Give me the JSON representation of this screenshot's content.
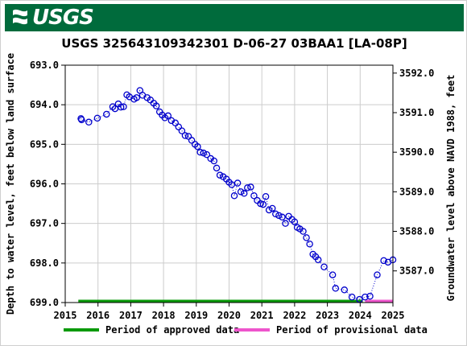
{
  "logo": {
    "text": "USGS"
  },
  "chart_data": {
    "type": "scatter",
    "title": "USGS 325643109342301 D-06-27 03BAA1 [LA-08P]",
    "ylabel_left": "Depth to water level, feet below land surface",
    "ylabel_right": "Groundwater level above NAVD 1988, feet",
    "xlim": [
      2015.0,
      2025.0
    ],
    "ylim_left": [
      693.0,
      699.0
    ],
    "ylim_right": [
      3586.2,
      3592.2
    ],
    "xticks": [
      "2015",
      "2016",
      "2017",
      "2018",
      "2019",
      "2020",
      "2021",
      "2022",
      "2023",
      "2024",
      "2025"
    ],
    "yticks_left": [
      "693.0",
      "694.0",
      "695.0",
      "696.0",
      "697.0",
      "698.0",
      "699.0"
    ],
    "yticks_right": [
      "3592.0",
      "3591.0",
      "3590.0",
      "3589.0",
      "3588.0",
      "3587.0"
    ],
    "grid": true,
    "line_style": "dotted",
    "colors": {
      "points": "#0000cc",
      "approved": "#0a9a0a",
      "provisional": "#ee55cc",
      "grid": "#cccccc"
    },
    "series": [
      {
        "x": [
          2015.48,
          2015.5,
          2015.72,
          2015.98,
          2016.26,
          2016.45,
          2016.52,
          2016.62,
          2016.7,
          2016.78,
          2016.88,
          2016.96,
          2017.1,
          2017.18,
          2017.28,
          2017.36,
          2017.5,
          2017.6,
          2017.7,
          2017.78,
          2017.88,
          2017.96,
          2018.04,
          2018.14,
          2018.24,
          2018.36,
          2018.46,
          2018.56,
          2018.66,
          2018.76,
          2018.86,
          2018.96,
          2019.04,
          2019.12,
          2019.22,
          2019.32,
          2019.44,
          2019.54,
          2019.62,
          2019.72,
          2019.82,
          2019.92,
          2020.0,
          2020.08,
          2020.16,
          2020.26,
          2020.36,
          2020.46,
          2020.56,
          2020.66,
          2020.76,
          2020.86,
          2020.96,
          2021.04,
          2021.12,
          2021.22,
          2021.32,
          2021.42,
          2021.52,
          2021.62,
          2021.72,
          2021.82,
          2021.92,
          2022.0,
          2022.08,
          2022.16,
          2022.26,
          2022.36,
          2022.46,
          2022.56,
          2022.64,
          2022.72,
          2022.9,
          2023.16,
          2023.25,
          2023.52,
          2023.75,
          2023.98,
          2024.15,
          2024.3,
          2024.52,
          2024.72,
          2024.85,
          2025.0
        ],
        "y": [
          694.35,
          694.38,
          694.44,
          694.34,
          694.24,
          694.05,
          694.1,
          693.98,
          694.06,
          694.05,
          693.75,
          693.8,
          693.86,
          693.82,
          693.64,
          693.76,
          693.82,
          693.88,
          693.96,
          694.03,
          694.18,
          694.26,
          694.33,
          694.28,
          694.4,
          694.46,
          694.56,
          694.66,
          694.78,
          694.8,
          694.9,
          695.0,
          695.06,
          695.2,
          695.22,
          695.26,
          695.36,
          695.42,
          695.6,
          695.78,
          695.82,
          695.88,
          695.96,
          696.02,
          696.3,
          695.98,
          696.2,
          696.24,
          696.1,
          696.08,
          696.3,
          696.42,
          696.5,
          696.52,
          696.32,
          696.66,
          696.62,
          696.76,
          696.8,
          696.84,
          697.0,
          696.82,
          696.9,
          696.96,
          697.1,
          697.14,
          697.2,
          697.36,
          697.52,
          697.78,
          697.84,
          697.92,
          698.1,
          698.3,
          698.64,
          698.68,
          698.86,
          698.92,
          698.86,
          698.84,
          698.3,
          697.94,
          697.98,
          697.92
        ]
      }
    ],
    "legend": [
      {
        "label": "Period of approved data",
        "color": "#0a9a0a"
      },
      {
        "label": "Period of provisional data",
        "color": "#ee55cc"
      }
    ],
    "approved_range": [
      2015.4,
      2024.08
    ],
    "provisional_range": [
      2024.15,
      2025.0
    ]
  }
}
